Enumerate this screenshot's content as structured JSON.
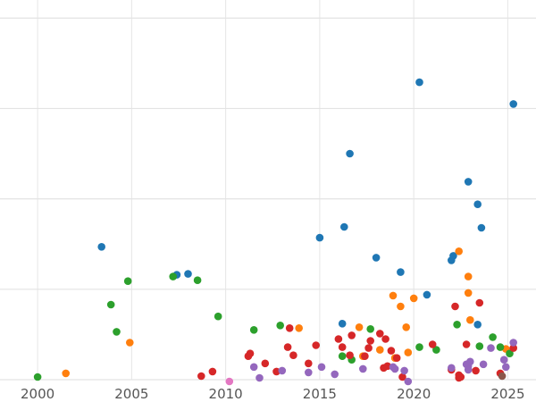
{
  "chart_data": {
    "type": "scatter",
    "xlim": [
      1998,
      2026.5
    ],
    "ylim": [
      0,
      42
    ],
    "grid": true,
    "xticks": [
      {
        "value": 2000,
        "label": "2000"
      },
      {
        "value": 2005,
        "label": "2005"
      },
      {
        "value": 2010,
        "label": "2010"
      },
      {
        "value": 2015,
        "label": "2015"
      },
      {
        "value": 2020,
        "label": "2020"
      },
      {
        "value": 2025,
        "label": "2025"
      }
    ],
    "ygrid": [
      0,
      10,
      20,
      30,
      40
    ],
    "series": [
      {
        "color": "#1f77b4",
        "points": [
          [
            2003.4,
            14.7
          ],
          [
            2007.4,
            11.6
          ],
          [
            2008.0,
            11.7
          ],
          [
            2015.0,
            15.7
          ],
          [
            2016.2,
            6.2
          ],
          [
            2016.3,
            16.9
          ],
          [
            2016.6,
            25.0
          ],
          [
            2018.0,
            13.5
          ],
          [
            2019.3,
            11.9
          ],
          [
            2020.3,
            32.9
          ],
          [
            2020.7,
            9.4
          ],
          [
            2022.0,
            13.2
          ],
          [
            2022.1,
            13.7
          ],
          [
            2022.9,
            21.9
          ],
          [
            2023.4,
            19.4
          ],
          [
            2023.4,
            6.1
          ],
          [
            2023.6,
            16.8
          ],
          [
            2025.3,
            30.5
          ]
        ]
      },
      {
        "color": "#ff7f0e",
        "points": [
          [
            2001.5,
            0.7
          ],
          [
            2004.9,
            4.1
          ],
          [
            2013.9,
            5.7
          ],
          [
            2017.1,
            5.8
          ],
          [
            2017.3,
            2.6
          ],
          [
            2018.2,
            3.3
          ],
          [
            2018.9,
            9.3
          ],
          [
            2019.0,
            2.4
          ],
          [
            2019.3,
            8.1
          ],
          [
            2019.6,
            5.8
          ],
          [
            2019.7,
            3.0
          ],
          [
            2020.0,
            9.0
          ],
          [
            2022.4,
            14.2
          ],
          [
            2022.9,
            11.4
          ],
          [
            2022.9,
            9.6
          ],
          [
            2023.0,
            6.6
          ],
          [
            2024.9,
            3.4
          ]
        ]
      },
      {
        "color": "#2ca02c",
        "points": [
          [
            2000.0,
            0.3
          ],
          [
            2003.9,
            8.3
          ],
          [
            2004.2,
            5.3
          ],
          [
            2004.8,
            10.9
          ],
          [
            2007.2,
            11.4
          ],
          [
            2008.5,
            11.0
          ],
          [
            2009.6,
            7.0
          ],
          [
            2011.5,
            5.5
          ],
          [
            2012.9,
            6.0
          ],
          [
            2016.2,
            2.6
          ],
          [
            2016.7,
            2.2
          ],
          [
            2017.7,
            5.6
          ],
          [
            2020.3,
            3.6
          ],
          [
            2021.2,
            3.3
          ],
          [
            2022.3,
            6.1
          ],
          [
            2023.5,
            3.7
          ],
          [
            2024.2,
            4.7
          ],
          [
            2024.6,
            3.6
          ],
          [
            2025.1,
            2.9
          ]
        ]
      },
      {
        "color": "#d62728",
        "points": [
          [
            2008.7,
            0.4
          ],
          [
            2009.3,
            0.9
          ],
          [
            2011.2,
            2.6
          ],
          [
            2011.3,
            2.9
          ],
          [
            2012.1,
            1.8
          ],
          [
            2012.7,
            0.9
          ],
          [
            2013.3,
            3.6
          ],
          [
            2013.4,
            5.7
          ],
          [
            2013.6,
            2.7
          ],
          [
            2014.4,
            1.8
          ],
          [
            2014.8,
            3.8
          ],
          [
            2016.0,
            4.5
          ],
          [
            2016.2,
            3.6
          ],
          [
            2016.6,
            2.7
          ],
          [
            2016.7,
            4.9
          ],
          [
            2017.4,
            2.6
          ],
          [
            2017.6,
            3.5
          ],
          [
            2017.7,
            4.3
          ],
          [
            2018.2,
            5.1
          ],
          [
            2018.4,
            1.3
          ],
          [
            2018.5,
            4.5
          ],
          [
            2018.6,
            1.5
          ],
          [
            2018.8,
            3.2
          ],
          [
            2019.1,
            2.4
          ],
          [
            2019.4,
            0.3
          ],
          [
            2021.0,
            3.9
          ],
          [
            2022.0,
            1.1
          ],
          [
            2022.2,
            8.1
          ],
          [
            2022.4,
            0.5
          ],
          [
            2022.4,
            0.2
          ],
          [
            2022.5,
            0.3
          ],
          [
            2022.8,
            3.9
          ],
          [
            2023.3,
            1.0
          ],
          [
            2023.5,
            8.5
          ],
          [
            2024.6,
            0.7
          ],
          [
            2025.3,
            3.5
          ]
        ]
      },
      {
        "color": "#9467bd",
        "points": [
          [
            2011.5,
            1.4
          ],
          [
            2011.8,
            0.2
          ],
          [
            2013.0,
            1.0
          ],
          [
            2014.4,
            0.8
          ],
          [
            2015.1,
            1.4
          ],
          [
            2015.8,
            0.6
          ],
          [
            2017.3,
            1.2
          ],
          [
            2018.9,
            1.4
          ],
          [
            2019.0,
            1.2
          ],
          [
            2019.5,
            1.0
          ],
          [
            2019.7,
            -0.2
          ],
          [
            2022.0,
            1.3
          ],
          [
            2022.8,
            1.7
          ],
          [
            2022.9,
            1.5
          ],
          [
            2022.9,
            1.1
          ],
          [
            2023.0,
            2.0
          ],
          [
            2023.7,
            1.7
          ],
          [
            2024.1,
            3.5
          ],
          [
            2024.8,
            2.2
          ],
          [
            2024.9,
            1.4
          ],
          [
            2025.3,
            4.1
          ]
        ]
      },
      {
        "color": "#8c564b",
        "points": [
          [
            2024.7,
            0.4
          ]
        ]
      },
      {
        "color": "#e377c2",
        "points": [
          [
            2010.2,
            -0.2
          ]
        ]
      }
    ]
  }
}
